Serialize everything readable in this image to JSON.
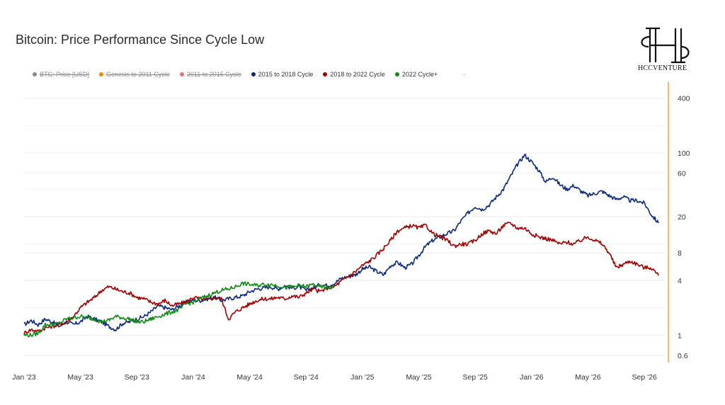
{
  "title": "Bitcoin: Price Performance Since Cycle Low",
  "logo": {
    "text": "HCCVENTURE"
  },
  "legend": [
    {
      "label": "BTC: Price [USD]",
      "color": "#888888",
      "hidden": true
    },
    {
      "label": "Genesis to 2011 Cycle",
      "color": "#f08a00",
      "hidden": true
    },
    {
      "label": "2011 to 2015 Cycle",
      "color": "#f07070",
      "hidden": true
    },
    {
      "label": "2015 to 2018 Cycle",
      "color": "#0d2a7a",
      "hidden": false
    },
    {
      "label": "2018 to 2022 Cycle",
      "color": "#a00000",
      "hidden": false
    },
    {
      "label": "2022 Cycle+",
      "color": "#118a1a",
      "hidden": false
    }
  ],
  "legend_extra": "-",
  "chart_data": {
    "type": "line",
    "title": "Bitcoin: Price Performance Since Cycle Low",
    "y_scale": "log",
    "ylim": [
      0.5,
      600
    ],
    "y_ticks": [
      0.6,
      1,
      4,
      8,
      20,
      60,
      100,
      400
    ],
    "x_ticks": [
      "Jan '23",
      "May '23",
      "Sep '23",
      "Jan '24",
      "May '24",
      "Sep '24",
      "Jan '25",
      "May '25",
      "Sep '25",
      "Jan '26",
      "May '26",
      "Sep '26"
    ],
    "xlim": [
      0,
      45.5
    ],
    "x_unit": "months since Jan '23",
    "grid": true,
    "legend_position": "top",
    "accent_axis_color": "#f0a040",
    "series": [
      {
        "name": "2015 to 2018 Cycle",
        "color": "#0d2a7a",
        "points": [
          [
            0,
            1.3
          ],
          [
            0.5,
            1.45
          ],
          [
            1,
            1.3
          ],
          [
            1.5,
            1.5
          ],
          [
            2,
            1.4
          ],
          [
            2.5,
            1.25
          ],
          [
            3,
            1.4
          ],
          [
            3.5,
            1.3
          ],
          [
            4,
            1.4
          ],
          [
            4.5,
            1.6
          ],
          [
            5,
            1.5
          ],
          [
            5.5,
            1.4
          ],
          [
            6,
            1.25
          ],
          [
            6.5,
            1.15
          ],
          [
            7,
            1.35
          ],
          [
            7.5,
            1.4
          ],
          [
            8,
            1.5
          ],
          [
            8.5,
            1.6
          ],
          [
            9,
            1.8
          ],
          [
            9.5,
            2.1
          ],
          [
            10,
            2.0
          ],
          [
            10.5,
            1.9
          ],
          [
            11,
            2.1
          ],
          [
            11.5,
            2.3
          ],
          [
            12,
            2.4
          ],
          [
            12.5,
            2.4
          ],
          [
            13,
            2.5
          ],
          [
            13.5,
            2.6
          ],
          [
            14,
            2.4
          ],
          [
            14.5,
            2.5
          ],
          [
            15,
            2.6
          ],
          [
            15.5,
            2.7
          ],
          [
            16,
            3.0
          ],
          [
            16.5,
            3.2
          ],
          [
            17,
            3.3
          ],
          [
            17.5,
            3.4
          ],
          [
            18,
            3.2
          ],
          [
            18.5,
            3.5
          ],
          [
            19,
            3.3
          ],
          [
            19.5,
            3.4
          ],
          [
            20,
            3.1
          ],
          [
            20.5,
            3.3
          ],
          [
            21,
            3.6
          ],
          [
            21.5,
            3.5
          ],
          [
            22,
            3.7
          ],
          [
            22.5,
            4.2
          ],
          [
            23,
            4.4
          ],
          [
            23.5,
            4.6
          ],
          [
            24,
            5.3
          ],
          [
            24.5,
            5.6
          ],
          [
            25,
            5.0
          ],
          [
            25.5,
            4.6
          ],
          [
            26,
            5.8
          ],
          [
            26.5,
            6.3
          ],
          [
            27,
            5.5
          ],
          [
            27.5,
            6.0
          ],
          [
            28,
            7.5
          ],
          [
            28.5,
            9.5
          ],
          [
            29,
            11
          ],
          [
            29.5,
            12
          ],
          [
            30,
            13
          ],
          [
            30.5,
            14
          ],
          [
            31,
            18
          ],
          [
            31.5,
            22
          ],
          [
            32,
            26
          ],
          [
            32.5,
            24
          ],
          [
            33,
            27
          ],
          [
            33.5,
            33
          ],
          [
            34,
            40
          ],
          [
            34.5,
            55
          ],
          [
            35,
            75
          ],
          [
            35.5,
            95
          ],
          [
            36,
            80
          ],
          [
            36.5,
            65
          ],
          [
            37,
            48
          ],
          [
            37.5,
            55
          ],
          [
            38,
            45
          ],
          [
            38.5,
            40
          ],
          [
            39,
            44
          ],
          [
            39.5,
            38
          ],
          [
            40,
            34
          ],
          [
            40.5,
            36
          ],
          [
            41,
            38
          ],
          [
            41.5,
            34
          ],
          [
            42,
            31
          ],
          [
            42.5,
            33
          ],
          [
            43,
            30
          ],
          [
            43.5,
            30
          ],
          [
            44,
            28
          ],
          [
            44.5,
            21
          ],
          [
            45,
            17
          ]
        ]
      },
      {
        "name": "2018 to 2022 Cycle",
        "color": "#a00000",
        "points": [
          [
            0,
            1.05
          ],
          [
            0.5,
            1.15
          ],
          [
            1,
            1.1
          ],
          [
            1.5,
            1.2
          ],
          [
            2,
            1.25
          ],
          [
            2.5,
            1.3
          ],
          [
            3,
            1.4
          ],
          [
            3.5,
            1.6
          ],
          [
            4,
            2.0
          ],
          [
            4.5,
            2.3
          ],
          [
            5,
            2.6
          ],
          [
            5.5,
            3.1
          ],
          [
            6,
            3.4
          ],
          [
            6.5,
            3.2
          ],
          [
            7,
            3.0
          ],
          [
            7.5,
            2.9
          ],
          [
            8,
            2.6
          ],
          [
            8.5,
            2.5
          ],
          [
            9,
            2.3
          ],
          [
            9.5,
            2.2
          ],
          [
            10,
            2.4
          ],
          [
            10.5,
            2.1
          ],
          [
            11,
            2.2
          ],
          [
            11.5,
            2.3
          ],
          [
            12,
            2.6
          ],
          [
            12.5,
            2.5
          ],
          [
            13,
            2.4
          ],
          [
            13.5,
            2.6
          ],
          [
            14,
            2.5
          ],
          [
            14.5,
            1.5
          ],
          [
            15,
            1.8
          ],
          [
            15.5,
            2.0
          ],
          [
            16,
            2.2
          ],
          [
            16.5,
            2.4
          ],
          [
            17,
            2.5
          ],
          [
            17.5,
            2.5
          ],
          [
            18,
            2.6
          ],
          [
            18.5,
            2.5
          ],
          [
            19,
            2.7
          ],
          [
            19.5,
            2.6
          ],
          [
            20,
            2.9
          ],
          [
            20.5,
            3.2
          ],
          [
            21,
            3.0
          ],
          [
            21.5,
            3.3
          ],
          [
            22,
            3.4
          ],
          [
            22.5,
            3.9
          ],
          [
            23,
            4.4
          ],
          [
            23.5,
            5.0
          ],
          [
            24,
            5.8
          ],
          [
            24.5,
            6.5
          ],
          [
            25,
            7.5
          ],
          [
            25.5,
            9.0
          ],
          [
            26,
            11
          ],
          [
            26.5,
            14
          ],
          [
            27,
            15
          ],
          [
            27.5,
            16
          ],
          [
            28,
            15
          ],
          [
            28.5,
            16
          ],
          [
            29,
            13
          ],
          [
            29.5,
            12
          ],
          [
            30,
            11
          ],
          [
            30.5,
            9.5
          ],
          [
            31,
            10
          ],
          [
            31.5,
            10
          ],
          [
            32,
            11
          ],
          [
            32.5,
            13
          ],
          [
            33,
            14
          ],
          [
            33.5,
            13
          ],
          [
            34,
            16
          ],
          [
            34.5,
            17
          ],
          [
            35,
            15
          ],
          [
            35.5,
            15
          ],
          [
            36,
            13
          ],
          [
            36.5,
            12
          ],
          [
            37,
            11.5
          ],
          [
            37.5,
            11
          ],
          [
            38,
            10
          ],
          [
            38.5,
            10.5
          ],
          [
            39,
            10
          ],
          [
            39.5,
            11
          ],
          [
            40,
            12
          ],
          [
            40.5,
            11
          ],
          [
            41,
            10
          ],
          [
            41.5,
            8
          ],
          [
            42,
            5.5
          ],
          [
            42.5,
            6
          ],
          [
            43,
            6.5
          ],
          [
            43.5,
            6
          ],
          [
            44,
            5.5
          ],
          [
            44.5,
            5.5
          ],
          [
            45,
            4.5
          ]
        ]
      },
      {
        "name": "2022 Cycle+",
        "color": "#118a1a",
        "points": [
          [
            0,
            1.0
          ],
          [
            0.5,
            1.0
          ],
          [
            1,
            1.05
          ],
          [
            1.5,
            1.3
          ],
          [
            2,
            1.3
          ],
          [
            2.5,
            1.35
          ],
          [
            3,
            1.5
          ],
          [
            3.5,
            1.55
          ],
          [
            4,
            1.6
          ],
          [
            4.5,
            1.55
          ],
          [
            5,
            1.5
          ],
          [
            5.5,
            1.4
          ],
          [
            6,
            1.45
          ],
          [
            6.5,
            1.6
          ],
          [
            7,
            1.55
          ],
          [
            7.5,
            1.5
          ],
          [
            8,
            1.4
          ],
          [
            8.5,
            1.4
          ],
          [
            9,
            1.5
          ],
          [
            9.5,
            1.6
          ],
          [
            10,
            1.7
          ],
          [
            10.5,
            1.8
          ],
          [
            11,
            1.9
          ],
          [
            11.5,
            2.2
          ],
          [
            12,
            2.3
          ],
          [
            12.5,
            2.5
          ],
          [
            13,
            2.7
          ],
          [
            13.5,
            2.9
          ],
          [
            14,
            3.1
          ],
          [
            14.5,
            3.2
          ],
          [
            15,
            3.4
          ],
          [
            15.5,
            3.7
          ],
          [
            16,
            3.6
          ],
          [
            16.5,
            3.5
          ],
          [
            17,
            3.6
          ],
          [
            17.5,
            3.6
          ],
          [
            18,
            3.5
          ],
          [
            18.5,
            3.3
          ],
          [
            19,
            3.4
          ],
          [
            19.5,
            3.5
          ],
          [
            20,
            3.4
          ],
          [
            20.5,
            3.6
          ],
          [
            21,
            3.4
          ],
          [
            21.5,
            3.3
          ],
          [
            22,
            3.4
          ]
        ]
      }
    ]
  }
}
